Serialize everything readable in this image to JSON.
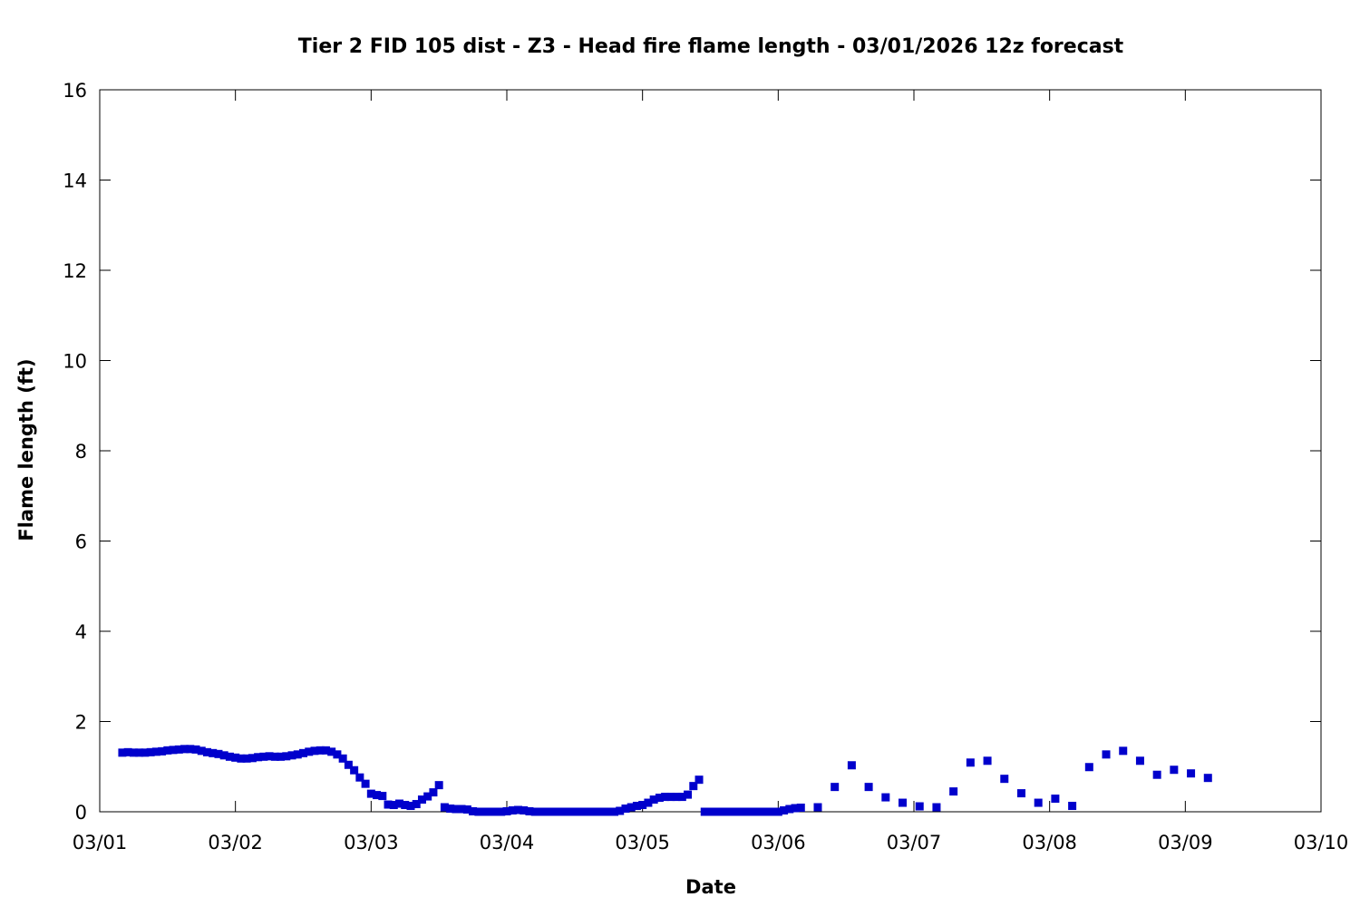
{
  "chart_data": {
    "type": "scatter",
    "title": "Tier 2 FID 105 dist - Z3 - Head fire flame length - 03/01/2026 12z forecast",
    "xlabel": "Date",
    "ylabel": "Flame length (ft)",
    "xlim": [
      "03/01",
      "03/10"
    ],
    "ylim": [
      0,
      16
    ],
    "x_ticks": [
      "03/01",
      "03/02",
      "03/03",
      "03/04",
      "03/05",
      "03/06",
      "03/07",
      "03/08",
      "03/09",
      "03/10"
    ],
    "y_ticks": [
      "0",
      "2",
      "4",
      "6",
      "8",
      "10",
      "12",
      "14",
      "16"
    ],
    "grid": false,
    "marker_color": "#0000cc",
    "series": [
      {
        "points": [
          [
            "03/01 04:00",
            1.31
          ],
          [
            "03/01 05:00",
            1.32
          ],
          [
            "03/01 06:00",
            1.31
          ],
          [
            "03/01 07:00",
            1.31
          ],
          [
            "03/01 08:00",
            1.31
          ],
          [
            "03/01 09:00",
            1.32
          ],
          [
            "03/01 10:00",
            1.33
          ],
          [
            "03/01 11:00",
            1.34
          ],
          [
            "03/01 12:00",
            1.36
          ],
          [
            "03/01 13:00",
            1.37
          ],
          [
            "03/01 14:00",
            1.38
          ],
          [
            "03/01 15:00",
            1.39
          ],
          [
            "03/01 16:00",
            1.39
          ],
          [
            "03/01 17:00",
            1.38
          ],
          [
            "03/01 18:00",
            1.35
          ],
          [
            "03/01 19:00",
            1.32
          ],
          [
            "03/01 20:00",
            1.3
          ],
          [
            "03/01 21:00",
            1.28
          ],
          [
            "03/01 22:00",
            1.25
          ],
          [
            "03/01 23:00",
            1.22
          ],
          [
            "03/02 00:00",
            1.2
          ],
          [
            "03/02 01:00",
            1.18
          ],
          [
            "03/02 02:00",
            1.18
          ],
          [
            "03/02 03:00",
            1.19
          ],
          [
            "03/02 04:00",
            1.21
          ],
          [
            "03/02 05:00",
            1.22
          ],
          [
            "03/02 06:00",
            1.23
          ],
          [
            "03/02 07:00",
            1.22
          ],
          [
            "03/02 08:00",
            1.22
          ],
          [
            "03/02 09:00",
            1.23
          ],
          [
            "03/02 10:00",
            1.25
          ],
          [
            "03/02 11:00",
            1.27
          ],
          [
            "03/02 12:00",
            1.3
          ],
          [
            "03/02 13:00",
            1.33
          ],
          [
            "03/02 14:00",
            1.35
          ],
          [
            "03/02 15:00",
            1.36
          ],
          [
            "03/02 16:00",
            1.36
          ],
          [
            "03/02 17:00",
            1.33
          ],
          [
            "03/02 18:00",
            1.27
          ],
          [
            "03/02 19:00",
            1.18
          ],
          [
            "03/02 20:00",
            1.04
          ],
          [
            "03/02 21:00",
            0.92
          ],
          [
            "03/02 22:00",
            0.76
          ],
          [
            "03/02 23:00",
            0.62
          ],
          [
            "03/03 00:00",
            0.4
          ],
          [
            "03/03 01:00",
            0.37
          ],
          [
            "03/03 02:00",
            0.35
          ],
          [
            "03/03 03:00",
            0.16
          ],
          [
            "03/03 04:00",
            0.15
          ],
          [
            "03/03 05:00",
            0.18
          ],
          [
            "03/03 06:00",
            0.15
          ],
          [
            "03/03 07:00",
            0.13
          ],
          [
            "03/03 08:00",
            0.17
          ],
          [
            "03/03 09:00",
            0.27
          ],
          [
            "03/03 10:00",
            0.34
          ],
          [
            "03/03 11:00",
            0.43
          ],
          [
            "03/03 12:00",
            0.59
          ],
          [
            "03/03 13:00",
            0.1
          ],
          [
            "03/03 14:00",
            0.07
          ],
          [
            "03/03 15:00",
            0.06
          ],
          [
            "03/03 16:00",
            0.06
          ],
          [
            "03/03 17:00",
            0.05
          ],
          [
            "03/03 18:00",
            0.01
          ],
          [
            "03/03 19:00",
            0.0
          ],
          [
            "03/03 20:00",
            0.0
          ],
          [
            "03/03 21:00",
            0.0
          ],
          [
            "03/03 22:00",
            0.0
          ],
          [
            "03/03 23:00",
            0.0
          ],
          [
            "03/04 00:00",
            0.01
          ],
          [
            "03/04 01:00",
            0.03
          ],
          [
            "03/04 02:00",
            0.04
          ],
          [
            "03/04 03:00",
            0.03
          ],
          [
            "03/04 04:00",
            0.01
          ],
          [
            "03/04 05:00",
            0.0
          ],
          [
            "03/04 06:00",
            0.0
          ],
          [
            "03/04 07:00",
            0.0
          ],
          [
            "03/04 08:00",
            0.0
          ],
          [
            "03/04 09:00",
            0.0
          ],
          [
            "03/04 10:00",
            0.0
          ],
          [
            "03/04 11:00",
            0.0
          ],
          [
            "03/04 12:00",
            0.0
          ],
          [
            "03/04 13:00",
            0.0
          ],
          [
            "03/04 14:00",
            0.0
          ],
          [
            "03/04 15:00",
            0.0
          ],
          [
            "03/04 16:00",
            0.0
          ],
          [
            "03/04 17:00",
            0.0
          ],
          [
            "03/04 18:00",
            0.0
          ],
          [
            "03/04 19:00",
            0.0
          ],
          [
            "03/04 20:00",
            0.02
          ],
          [
            "03/04 21:00",
            0.07
          ],
          [
            "03/04 22:00",
            0.1
          ],
          [
            "03/04 23:00",
            0.13
          ],
          [
            "03/05 00:00",
            0.15
          ],
          [
            "03/05 01:00",
            0.2
          ],
          [
            "03/05 02:00",
            0.27
          ],
          [
            "03/05 03:00",
            0.31
          ],
          [
            "03/05 04:00",
            0.33
          ],
          [
            "03/05 05:00",
            0.33
          ],
          [
            "03/05 06:00",
            0.33
          ],
          [
            "03/05 07:00",
            0.33
          ],
          [
            "03/05 08:00",
            0.38
          ],
          [
            "03/05 09:00",
            0.57
          ],
          [
            "03/05 10:00",
            0.71
          ],
          [
            "03/05 11:00",
            0.0
          ],
          [
            "03/05 12:00",
            0.0
          ],
          [
            "03/05 13:00",
            0.0
          ],
          [
            "03/05 14:00",
            0.0
          ],
          [
            "03/05 15:00",
            0.0
          ],
          [
            "03/05 16:00",
            0.0
          ],
          [
            "03/05 17:00",
            0.0
          ],
          [
            "03/05 18:00",
            0.0
          ],
          [
            "03/05 19:00",
            0.0
          ],
          [
            "03/05 20:00",
            0.0
          ],
          [
            "03/05 21:00",
            0.0
          ],
          [
            "03/05 22:00",
            0.0
          ],
          [
            "03/05 23:00",
            0.0
          ],
          [
            "03/06 00:00",
            0.0
          ],
          [
            "03/06 01:00",
            0.03
          ],
          [
            "03/06 02:00",
            0.06
          ],
          [
            "03/06 03:00",
            0.08
          ],
          [
            "03/06 04:00",
            0.09
          ],
          [
            "03/06 07:00",
            0.1
          ],
          [
            "03/06 10:00",
            0.55
          ],
          [
            "03/06 13:00",
            1.03
          ],
          [
            "03/06 16:00",
            0.55
          ],
          [
            "03/06 19:00",
            0.32
          ],
          [
            "03/06 22:00",
            0.2
          ],
          [
            "03/07 01:00",
            0.12
          ],
          [
            "03/07 04:00",
            0.1
          ],
          [
            "03/07 07:00",
            0.45
          ],
          [
            "03/07 10:00",
            1.09
          ],
          [
            "03/07 13:00",
            1.13
          ],
          [
            "03/07 16:00",
            0.73
          ],
          [
            "03/07 19:00",
            0.41
          ],
          [
            "03/07 22:00",
            0.2
          ],
          [
            "03/08 01:00",
            0.29
          ],
          [
            "03/08 04:00",
            0.13
          ],
          [
            "03/08 07:00",
            0.99
          ],
          [
            "03/08 10:00",
            1.27
          ],
          [
            "03/08 13:00",
            1.35
          ],
          [
            "03/08 16:00",
            1.13
          ],
          [
            "03/08 19:00",
            0.82
          ],
          [
            "03/08 22:00",
            0.93
          ],
          [
            "03/09 01:00",
            0.85
          ],
          [
            "03/09 04:00",
            0.75
          ]
        ]
      }
    ]
  }
}
